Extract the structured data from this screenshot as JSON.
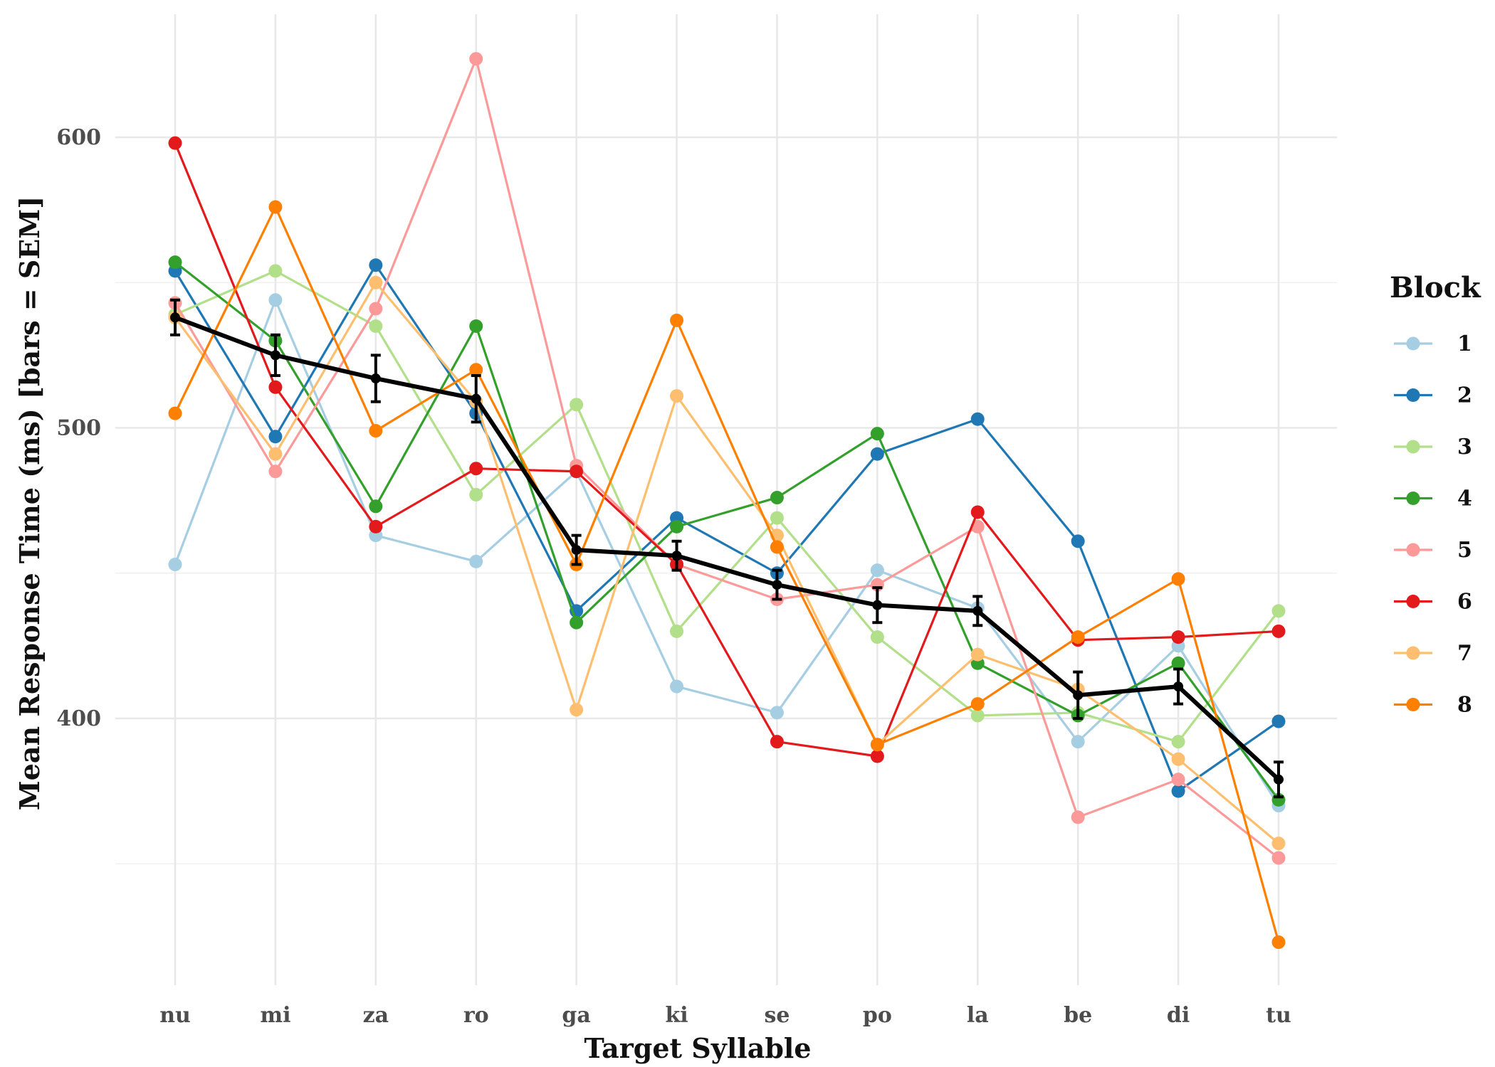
{
  "chart_data": {
    "type": "line",
    "title": "",
    "xlabel": "Target Syllable",
    "ylabel": "Mean Response Time (ms) [bars = SEM]",
    "categories": [
      "nu",
      "mi",
      "za",
      "ro",
      "ga",
      "ki",
      "se",
      "po",
      "la",
      "be",
      "di",
      "tu"
    ],
    "ylim": [
      310,
      635
    ],
    "yticks": [
      400,
      500,
      600
    ],
    "yticks_minor": [
      350,
      450,
      550
    ],
    "grid": true,
    "legend": {
      "title": "Block",
      "position": "right"
    },
    "series": [
      {
        "name": "1",
        "color": "#a6cee3",
        "values": [
          453,
          544,
          463,
          454,
          485,
          411,
          402,
          451,
          438,
          392,
          425,
          370
        ]
      },
      {
        "name": "2",
        "color": "#1f78b4",
        "values": [
          554,
          497,
          556,
          505,
          437,
          469,
          450,
          491,
          503,
          461,
          375,
          399
        ]
      },
      {
        "name": "3",
        "color": "#b2df8a",
        "values": [
          539,
          554,
          535,
          477,
          508,
          430,
          469,
          428,
          401,
          402,
          392,
          437
        ]
      },
      {
        "name": "4",
        "color": "#33a02c",
        "values": [
          557,
          530,
          473,
          535,
          433,
          466,
          476,
          498,
          419,
          401,
          419,
          372
        ]
      },
      {
        "name": "5",
        "color": "#fb9a99",
        "values": [
          543,
          485,
          541,
          627,
          487,
          453,
          441,
          446,
          466,
          366,
          379,
          352
        ]
      },
      {
        "name": "6",
        "color": "#e31a1c",
        "values": [
          598,
          514,
          466,
          486,
          485,
          453,
          392,
          387,
          471,
          427,
          428,
          430
        ]
      },
      {
        "name": "7",
        "color": "#fdbf6f",
        "values": [
          538,
          491,
          550,
          509,
          403,
          511,
          463,
          391,
          422,
          410,
          386,
          357
        ]
      },
      {
        "name": "8",
        "color": "#ff7f00",
        "values": [
          505,
          576,
          499,
          520,
          453,
          537,
          459,
          391,
          405,
          428,
          448,
          323
        ]
      }
    ],
    "mean_series": {
      "color": "#000000",
      "values": [
        538,
        525,
        517,
        510,
        458,
        456,
        446,
        439,
        437,
        408,
        411,
        379
      ],
      "sem": [
        6,
        7,
        8,
        8,
        5,
        5,
        5,
        6,
        5,
        8,
        6,
        6
      ]
    }
  }
}
